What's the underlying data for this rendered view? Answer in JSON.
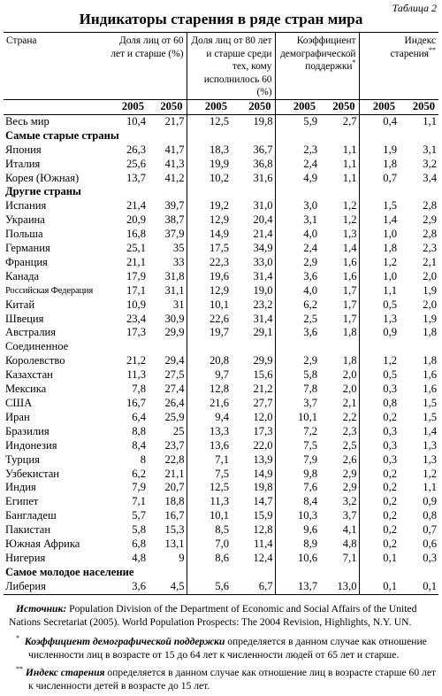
{
  "table_label": "Таблица 2",
  "title": "Индикаторы старения в ряде стран мира",
  "headers": {
    "country": "Страна",
    "col1": "Доля лиц от 60 лет и старше (%)",
    "col2": "Доля лиц от 80 лет и старше среди тех, кому исполнилось 60 (%)",
    "col3": "Коэффициент демографической поддержки",
    "col3_mark": "*",
    "col4": "Индекс старения",
    "col4_mark": "**"
  },
  "years": [
    "2005",
    "2050",
    "2005",
    "2050",
    "2005",
    "2050",
    "2005",
    "2050"
  ],
  "rows": [
    {
      "name": "Весь мир",
      "v": [
        "10,4",
        "21,7",
        "12,5",
        "19,8",
        "5,9",
        "2,7",
        "0,4",
        "1,1"
      ]
    },
    {
      "section": "Самые старые страны"
    },
    {
      "name": "Япония",
      "v": [
        "26,3",
        "41,7",
        "18,3",
        "36,7",
        "2,3",
        "1,1",
        "1,9",
        "3,1"
      ]
    },
    {
      "name": "Италия",
      "v": [
        "25,6",
        "41,3",
        "19,9",
        "36,8",
        "2,4",
        "1,1",
        "1,8",
        "3,2"
      ]
    },
    {
      "name": "Корея (Южная)",
      "v": [
        "13,7",
        "41,2",
        "10,2",
        "31,6",
        "4,9",
        "1,1",
        "0,7",
        "3,4"
      ]
    },
    {
      "section": "Другие страны"
    },
    {
      "name": "Испания",
      "v": [
        "21,4",
        "39,7",
        "19,2",
        "31,0",
        "3,0",
        "1,2",
        "1,5",
        "2,8"
      ]
    },
    {
      "name": "Украина",
      "v": [
        "20,9",
        "38,7",
        "12,9",
        "20,4",
        "3,1",
        "1,2",
        "1,4",
        "2,9"
      ]
    },
    {
      "name": "Польша",
      "v": [
        "16,8",
        "37,9",
        "14,9",
        "21,4",
        "4,0",
        "1,3",
        "1,0",
        "2,8"
      ]
    },
    {
      "name": "Германия",
      "v": [
        "25,1",
        "35",
        "17,5",
        "34,9",
        "2,4",
        "1,4",
        "1,8",
        "2,3"
      ]
    },
    {
      "name": "Франция",
      "v": [
        "21,1",
        "33",
        "22,3",
        "33,0",
        "2,9",
        "1,6",
        "1,2",
        "2,1"
      ]
    },
    {
      "name": "Канада",
      "v": [
        "17,9",
        "31,8",
        "19,6",
        "31,4",
        "3,6",
        "1,6",
        "1,0",
        "2,0"
      ]
    },
    {
      "name": "Российская Федерация",
      "small": true,
      "v": [
        "17,1",
        "31,1",
        "12,9",
        "19,0",
        "4,0",
        "1,7",
        "1,1",
        "1,9"
      ]
    },
    {
      "name": "Китай",
      "v": [
        "10,9",
        "31",
        "10,1",
        "23,2",
        "6,2",
        "1,7",
        "0,5",
        "2,0"
      ]
    },
    {
      "name": "Швеция",
      "v": [
        "23,4",
        "30,9",
        "22,6",
        "31,4",
        "2,5",
        "1,7",
        "1,3",
        "1,9"
      ]
    },
    {
      "name": "Австралия",
      "v": [
        "17,3",
        "29,9",
        "19,7",
        "29,1",
        "3,6",
        "1,8",
        "0,9",
        "1,8"
      ]
    },
    {
      "name": "Соединенное",
      "cont": true
    },
    {
      "name": "Королевство",
      "v": [
        "21,2",
        "29,4",
        "20,8",
        "29,9",
        "2,9",
        "1,8",
        "1,2",
        "1,8"
      ]
    },
    {
      "name": "Казахстан",
      "v": [
        "11,3",
        "27,5",
        "9,7",
        "15,6",
        "5,8",
        "2,0",
        "0,5",
        "1,6"
      ]
    },
    {
      "name": "Мексика",
      "v": [
        "7,8",
        "27,4",
        "12,8",
        "21,2",
        "7,8",
        "2,0",
        "0,3",
        "1,6"
      ]
    },
    {
      "name": "США",
      "v": [
        "16,7",
        "26,4",
        "21,6",
        "27,7",
        "3,7",
        "2,1",
        "0,8",
        "1,5"
      ]
    },
    {
      "name": "Иран",
      "v": [
        "6,4",
        "25,9",
        "9,4",
        "12,0",
        "10,1",
        "2,2",
        "0,2",
        "1,5"
      ]
    },
    {
      "name": "Бразилия",
      "v": [
        "8,8",
        "25",
        "13,3",
        "17,3",
        "7,2",
        "2,3",
        "0,3",
        "1,4"
      ]
    },
    {
      "name": "Индонезия",
      "v": [
        "8,4",
        "23,7",
        "13,6",
        "22,0",
        "7,5",
        "2,5",
        "0,3",
        "1,3"
      ]
    },
    {
      "name": "Турция",
      "v": [
        "8",
        "22,8",
        "7,1",
        "13,9",
        "7,9",
        "2,6",
        "0,3",
        "1,3"
      ]
    },
    {
      "name": "Узбекистан",
      "v": [
        "6,2",
        "21,1",
        "7,5",
        "14,9",
        "9,8",
        "2,9",
        "0,2",
        "1,2"
      ]
    },
    {
      "name": "Индия",
      "v": [
        "7,9",
        "20,7",
        "12,5",
        "19,8",
        "7,6",
        "2,9",
        "0,2",
        "1,1"
      ]
    },
    {
      "name": "Египет",
      "v": [
        "7,1",
        "18,8",
        "11,3",
        "14,7",
        "8,4",
        "3,2",
        "0,2",
        "0,9"
      ]
    },
    {
      "name": "Бангладеш",
      "v": [
        "5,7",
        "16,7",
        "10,1",
        "15,9",
        "10,3",
        "3,7",
        "0,2",
        "0,8"
      ]
    },
    {
      "name": "Пакистан",
      "v": [
        "5,8",
        "15,3",
        "8,5",
        "12,8",
        "9,6",
        "4,1",
        "0,2",
        "0,7"
      ]
    },
    {
      "name": "Южная Африка",
      "v": [
        "6,8",
        "13,1",
        "7,0",
        "11,4",
        "8,9",
        "4,8",
        "0,2",
        "0,6"
      ]
    },
    {
      "name": "Нигерия",
      "v": [
        "4,8",
        "9",
        "8,6",
        "12,4",
        "10,6",
        "7,1",
        "0,1",
        "0,3"
      ]
    },
    {
      "section": "Самое молодое население"
    },
    {
      "name": "Либерия",
      "v": [
        "3,6",
        "4,5",
        "5,6",
        "6,7",
        "13,7",
        "13,0",
        "0,1",
        "0,1"
      ]
    }
  ],
  "notes": {
    "source_label": "Источник:",
    "source_text": " Population Division of the Department of Economic and Social Affairs of the United Nations Secretariat (2005). World Population Prospects: The 2004 Revision, Highlights, N.Y. UN.",
    "fn1_mark": "*",
    "fn1_term": "Коэффициент демографической поддержки",
    "fn1_text": " определяется в данном случае как отношение численности лиц в возрасте от 15 до 64 лет к численности людей от 65 лет и старше.",
    "fn2_mark": "**",
    "fn2_term": "Индекс старения",
    "fn2_text": " определяется в данном случае как отношение лиц в возрасте старше 60 лет к численности детей в возрасте до 15 лет."
  }
}
